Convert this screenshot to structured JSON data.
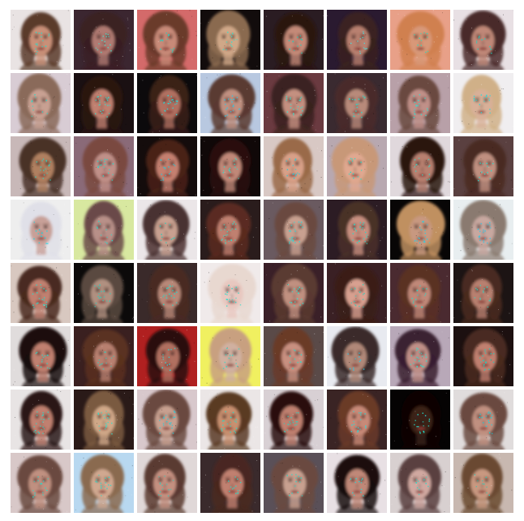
{
  "grid": {
    "rows": 8,
    "columns": 8,
    "description_kind": "generated-face-samples",
    "tiles": [
      {
        "bg": "#e9e3e3",
        "hair": "#5a3a2a",
        "skin": "#c99078",
        "artifact": "#22ddcc"
      },
      {
        "bg": "#3b2630",
        "hair": "#3a2024",
        "skin": "#b07a72",
        "artifact": "#44e0cc"
      },
      {
        "bg": "#d46a6a",
        "hair": "#6a3a2a",
        "skin": "#c88a78",
        "artifact": "#22d0c0"
      },
      {
        "bg": "#120c0c",
        "hair": "#8a6a50",
        "skin": "#d0a888",
        "artifact": "#30e0d0"
      },
      {
        "bg": "#2a1c22",
        "hair": "#2a1410",
        "skin": "#c48a78",
        "artifact": "#20ccbb"
      },
      {
        "bg": "#2a1a30",
        "hair": "#3a2220",
        "skin": "#b88070",
        "artifact": "#44dddd"
      },
      {
        "bg": "#e8a088",
        "hair": "#d08050",
        "skin": "#d89878",
        "artifact": "#22e0c0"
      },
      {
        "bg": "#e8e0e4",
        "hair": "#4a2a2a",
        "skin": "#c08878",
        "artifact": "#10d8c8"
      },
      {
        "bg": "#d8ccd4",
        "hair": "#8a6a5a",
        "skin": "#c8a092",
        "artifact": "#22ddcc"
      },
      {
        "bg": "#1a1012",
        "hair": "#2a1410",
        "skin": "#c08070",
        "artifact": "#33ddcc"
      },
      {
        "bg": "#0c0a0c",
        "hair": "#3a2018",
        "skin": "#b07060",
        "artifact": "#20e0e0"
      },
      {
        "bg": "#b8c8e0",
        "hair": "#5a3a30",
        "skin": "#c09080",
        "artifact": "#22ccee"
      },
      {
        "bg": "#6a3a40",
        "hair": "#3a2220",
        "skin": "#c49080",
        "artifact": "#33e0cc"
      },
      {
        "bg": "#3a2a30",
        "hair": "#4a2a2a",
        "skin": "#b88a7a",
        "artifact": "#22ddcc"
      },
      {
        "bg": "#b8a0a8",
        "hair": "#6a4a40",
        "skin": "#c09088",
        "artifact": "#30e0d0"
      },
      {
        "bg": "#f0eef0",
        "hair": "#d0b088",
        "skin": "#d8b098",
        "artifact": "#22dddd"
      },
      {
        "bg": "#c8b8b8",
        "hair": "#4a3228",
        "skin": "#b08060",
        "artifact": "#33ccbb"
      },
      {
        "bg": "#8a6a78",
        "hair": "#7a4a40",
        "skin": "#c09088",
        "artifact": "#22ddcc"
      },
      {
        "bg": "#140c0c",
        "hair": "#4a2218",
        "skin": "#c48070",
        "artifact": "#20ccdd"
      },
      {
        "bg": "#100808",
        "hair": "#2a1010",
        "skin": "#c08878",
        "artifact": "#30ddcc"
      },
      {
        "bg": "#d8c8c4",
        "hair": "#9a6a48",
        "skin": "#d8a088",
        "artifact": "#22ccdd"
      },
      {
        "bg": "#b8a8b0",
        "hair": "#c89878",
        "skin": "#e0a890",
        "artifact": "#22ddcc"
      },
      {
        "bg": "#e0d8dc",
        "hair": "#2a1410",
        "skin": "#b88070",
        "artifact": "#33ddcc"
      },
      {
        "bg": "#5a4040",
        "hair": "#4a2a22",
        "skin": "#c09080",
        "artifact": "#22e0d0"
      },
      {
        "bg": "#eeeeee",
        "hair": "#e0e0e8",
        "skin": "#c8a098",
        "artifact": "#00e0ee"
      },
      {
        "bg": "#d8e8a0",
        "hair": "#6a4a48",
        "skin": "#b89088",
        "artifact": "#22ddcc"
      },
      {
        "bg": "#ebe6e8",
        "hair": "#4a3030",
        "skin": "#c8a090",
        "artifact": "#22ccbb"
      },
      {
        "bg": "#2a1c1c",
        "hair": "#5a2a20",
        "skin": "#c08070",
        "artifact": "#33ddcc"
      },
      {
        "bg": "#6a5a60",
        "hair": "#6a4a40",
        "skin": "#c8a090",
        "artifact": "#22dddd"
      },
      {
        "bg": "#2c1c24",
        "hair": "#4a3028",
        "skin": "#c89080",
        "artifact": "#22ddcc"
      },
      {
        "bg": "#080606",
        "hair": "#c09060",
        "skin": "#c89880",
        "artifact": "#30ccdd"
      },
      {
        "bg": "#e8eef0",
        "hair": "#8a7a70",
        "skin": "#c8a8a0",
        "artifact": "#22ccee"
      },
      {
        "bg": "#d8c8c0",
        "hair": "#4a2a20",
        "skin": "#c08070",
        "artifact": "#22ddcc"
      },
      {
        "bg": "#0c0a0a",
        "hair": "#5a4a40",
        "skin": "#b09080",
        "artifact": "#30ccbb"
      },
      {
        "bg": "#3a2a2a",
        "hair": "#4a2a22",
        "skin": "#b88878",
        "artifact": "#22ddcc"
      },
      {
        "bg": "#f0eaea",
        "hair": "#e8d8d0",
        "skin": "#e8c8c0",
        "artifact": "#22ddcc"
      },
      {
        "bg": "#3a2028",
        "hair": "#5a3a30",
        "skin": "#c09080",
        "artifact": "#22eedd"
      },
      {
        "bg": "#3a2024",
        "hair": "#3a1c14",
        "skin": "#d8a090",
        "artifact": "#30ccbb"
      },
      {
        "bg": "#4a2a30",
        "hair": "#5a3024",
        "skin": "#c08878",
        "artifact": "#22ddcc"
      },
      {
        "bg": "#1c1414",
        "hair": "#4a2a20",
        "skin": "#b88070",
        "artifact": "#22ddcc"
      },
      {
        "bg": "#e0dcdc",
        "hair": "#1a0c0c",
        "skin": "#c08070",
        "artifact": "#22ddcc"
      },
      {
        "bg": "#3a2020",
        "hair": "#5a3020",
        "skin": "#b88070",
        "artifact": "#33ccbb"
      },
      {
        "bg": "#b02020",
        "hair": "#2a1010",
        "skin": "#b07060",
        "artifact": "#22e0dd"
      },
      {
        "bg": "#f0f060",
        "hair": "#c8a080",
        "skin": "#d0b0a0",
        "artifact": "#22ddcc"
      },
      {
        "bg": "#5a4a48",
        "hair": "#6a3a28",
        "skin": "#c89080",
        "artifact": "#22ddcc"
      },
      {
        "bg": "#e8eaf0",
        "hair": "#3a2a2a",
        "skin": "#b08878",
        "artifact": "#22ccee"
      },
      {
        "bg": "#b8a8b8",
        "hair": "#3a2030",
        "skin": "#c09088",
        "artifact": "#30ddcc"
      },
      {
        "bg": "#1c1010",
        "hair": "#4a2a20",
        "skin": "#c08070",
        "artifact": "#22ccbb"
      },
      {
        "bg": "#e8e4e4",
        "hair": "#2a1414",
        "skin": "#c08070",
        "artifact": "#22ddcc"
      },
      {
        "bg": "#2a1a18",
        "hair": "#7a5a40",
        "skin": "#d0a888",
        "artifact": "#33ddcc"
      },
      {
        "bg": "#d8c8cc",
        "hair": "#6a4a40",
        "skin": "#c8a090",
        "artifact": "#22ccdd"
      },
      {
        "bg": "#ebe6e6",
        "hair": "#5a3a24",
        "skin": "#c89070",
        "artifact": "#22ddcc"
      },
      {
        "bg": "#d8d0d4",
        "hair": "#2a1010",
        "skin": "#c08070",
        "artifact": "#33ccbb"
      },
      {
        "bg": "#3a2424",
        "hair": "#6a3a28",
        "skin": "#c88a78",
        "artifact": "#22dddd"
      },
      {
        "bg": "#050303",
        "hair": "#0a0404",
        "skin": "#3a2018",
        "artifact": "#22ddcc"
      },
      {
        "bg": "#e0dcdc",
        "hair": "#6a4a40",
        "skin": "#c09080",
        "artifact": "#00ddee"
      },
      {
        "bg": "#d8c8c8",
        "hair": "#6a4a40",
        "skin": "#c09080",
        "artifact": "#22ddcc"
      },
      {
        "bg": "#b8d8f0",
        "hair": "#8a6a50",
        "skin": "#d0a890",
        "artifact": "#22ddcc"
      },
      {
        "bg": "#e0d8d8",
        "hair": "#5a3a30",
        "skin": "#c49080",
        "artifact": "#30ccbb"
      },
      {
        "bg": "#3a2a2c",
        "hair": "#4a2820",
        "skin": "#c08070",
        "artifact": "#22ddcc"
      },
      {
        "bg": "#5a5058",
        "hair": "#6a4a40",
        "skin": "#c8a090",
        "artifact": "#22ddcc"
      },
      {
        "bg": "#e8e0e4",
        "hair": "#1a1010",
        "skin": "#c08878",
        "artifact": "#22dddd"
      },
      {
        "bg": "#d8d0d0",
        "hair": "#5a4040",
        "skin": "#d0a8a0",
        "artifact": "#22ddcc"
      },
      {
        "bg": "#c8b8b0",
        "hair": "#6a4a30",
        "skin": "#c89880",
        "artifact": "#22ccbb"
      }
    ]
  }
}
